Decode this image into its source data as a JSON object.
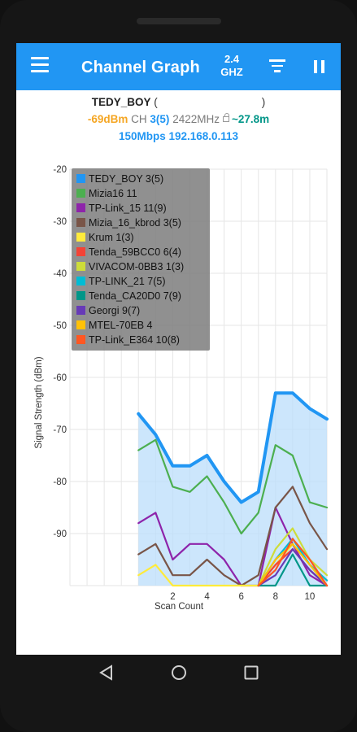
{
  "app": {
    "title": "Channel Graph",
    "band_label_line1": "2.4",
    "band_label_line2": "GHZ",
    "menu_icon": "hamburger-menu-icon",
    "filter_icon": "filter-icon",
    "pause_icon": "pause-icon"
  },
  "connection": {
    "ssid": "TEDY_BOY",
    "paren_open": "(",
    "paren_close": ")",
    "signal": "-69dBm",
    "ch_label": "CH",
    "channel": "3(5)",
    "frequency": "2422MHz",
    "distance": "~27.8m",
    "link_info": "150Mbps 192.168.0.113"
  },
  "chart_data": {
    "type": "line",
    "ylabel": "Signal Strength (dBm)",
    "xlabel": "Scan Count",
    "ylim": [
      -100,
      -20
    ],
    "xlim": [
      -4,
      11
    ],
    "y_ticks": [
      "-20",
      "-30",
      "-40",
      "-50",
      "-60",
      "-70",
      "-80",
      "-90"
    ],
    "x_ticks": [
      "2",
      "4",
      "6",
      "8",
      "10"
    ],
    "legend_placement": "top-left",
    "series": [
      {
        "name": "TEDY_BOY 3(5)",
        "color": "#2196f3",
        "fill": true,
        "x": [
          0,
          1,
          2,
          3,
          4,
          5,
          6,
          7,
          8,
          9,
          10,
          11
        ],
        "y": [
          -67,
          -71,
          -77,
          -77,
          -75,
          -80,
          -84,
          -82,
          -63,
          -63,
          -66,
          -68
        ]
      },
      {
        "name": "Mizia16 11",
        "color": "#4caf50",
        "x": [
          0,
          1,
          2,
          3,
          4,
          5,
          6,
          7,
          8,
          9,
          10,
          11
        ],
        "y": [
          -74,
          -72,
          -81,
          -82,
          -79,
          -84,
          -90,
          -86,
          -73,
          -75,
          -84,
          -85
        ]
      },
      {
        "name": "TP-Link_15 11(9)",
        "color": "#8e24aa",
        "x": [
          0,
          1,
          2,
          3,
          4,
          5,
          6,
          7,
          8,
          9,
          10,
          11
        ],
        "y": [
          -88,
          -86,
          -95,
          -92,
          -92,
          -95,
          -100,
          -100,
          -85,
          -92,
          -98,
          -100
        ]
      },
      {
        "name": "Mizia_16_kbrod 3(5)",
        "color": "#795548",
        "x": [
          0,
          1,
          2,
          3,
          4,
          5,
          6,
          7,
          8,
          9,
          10,
          11
        ],
        "y": [
          -94,
          -92,
          -98,
          -98,
          -95,
          -98,
          -100,
          -98,
          -85,
          -81,
          -88,
          -93
        ]
      },
      {
        "name": "Krum 1(3)",
        "color": "#ffeb3b",
        "x": [
          0,
          1,
          2,
          3,
          4,
          5,
          6,
          7,
          8,
          9,
          10,
          11
        ],
        "y": [
          -98,
          -96,
          -100,
          -100,
          -100,
          -100,
          -100,
          -100,
          -96,
          -92,
          -96,
          -99
        ]
      },
      {
        "name": "Tenda_59BCC0 6(4)",
        "color": "#f44336",
        "x": [
          7,
          8,
          9,
          10,
          11
        ],
        "y": [
          -100,
          -96,
          -93,
          -97,
          -100
        ]
      },
      {
        "name": "VIVACOM-0BB3 1(3)",
        "color": "#cddc39",
        "x": [
          7,
          8,
          9,
          10,
          11
        ],
        "y": [
          -100,
          -93,
          -89,
          -95,
          -98
        ]
      },
      {
        "name": "TP-LINK_21 7(5)",
        "color": "#00bcd4",
        "x": [
          7,
          8,
          9,
          10,
          11
        ],
        "y": [
          -100,
          -95,
          -91,
          -96,
          -99
        ]
      },
      {
        "name": "Tenda_CA20D0 7(9)",
        "color": "#009688",
        "x": [
          7,
          8,
          9,
          10,
          11
        ],
        "y": [
          -100,
          -100,
          -94,
          -100,
          -100
        ]
      },
      {
        "name": "Georgi 9(7)",
        "color": "#673ab7",
        "x": [
          7,
          8,
          9,
          10,
          11
        ],
        "y": [
          -100,
          -98,
          -93,
          -97,
          -100
        ]
      },
      {
        "name": "MTEL-70EB 4",
        "color": "#ffc107",
        "x": [
          7,
          8,
          9,
          10,
          11
        ],
        "y": [
          -100,
          -95,
          -92,
          -96,
          -100
        ]
      },
      {
        "name": "TP-Link_E364 10(8)",
        "color": "#ff5722",
        "x": [
          7,
          8,
          9,
          10,
          11
        ],
        "y": [
          -100,
          -97,
          -91,
          -95,
          -100
        ]
      }
    ]
  },
  "nav": {
    "back_icon": "back-triangle-icon",
    "home_icon": "home-circle-icon",
    "recents_icon": "recents-square-icon"
  }
}
